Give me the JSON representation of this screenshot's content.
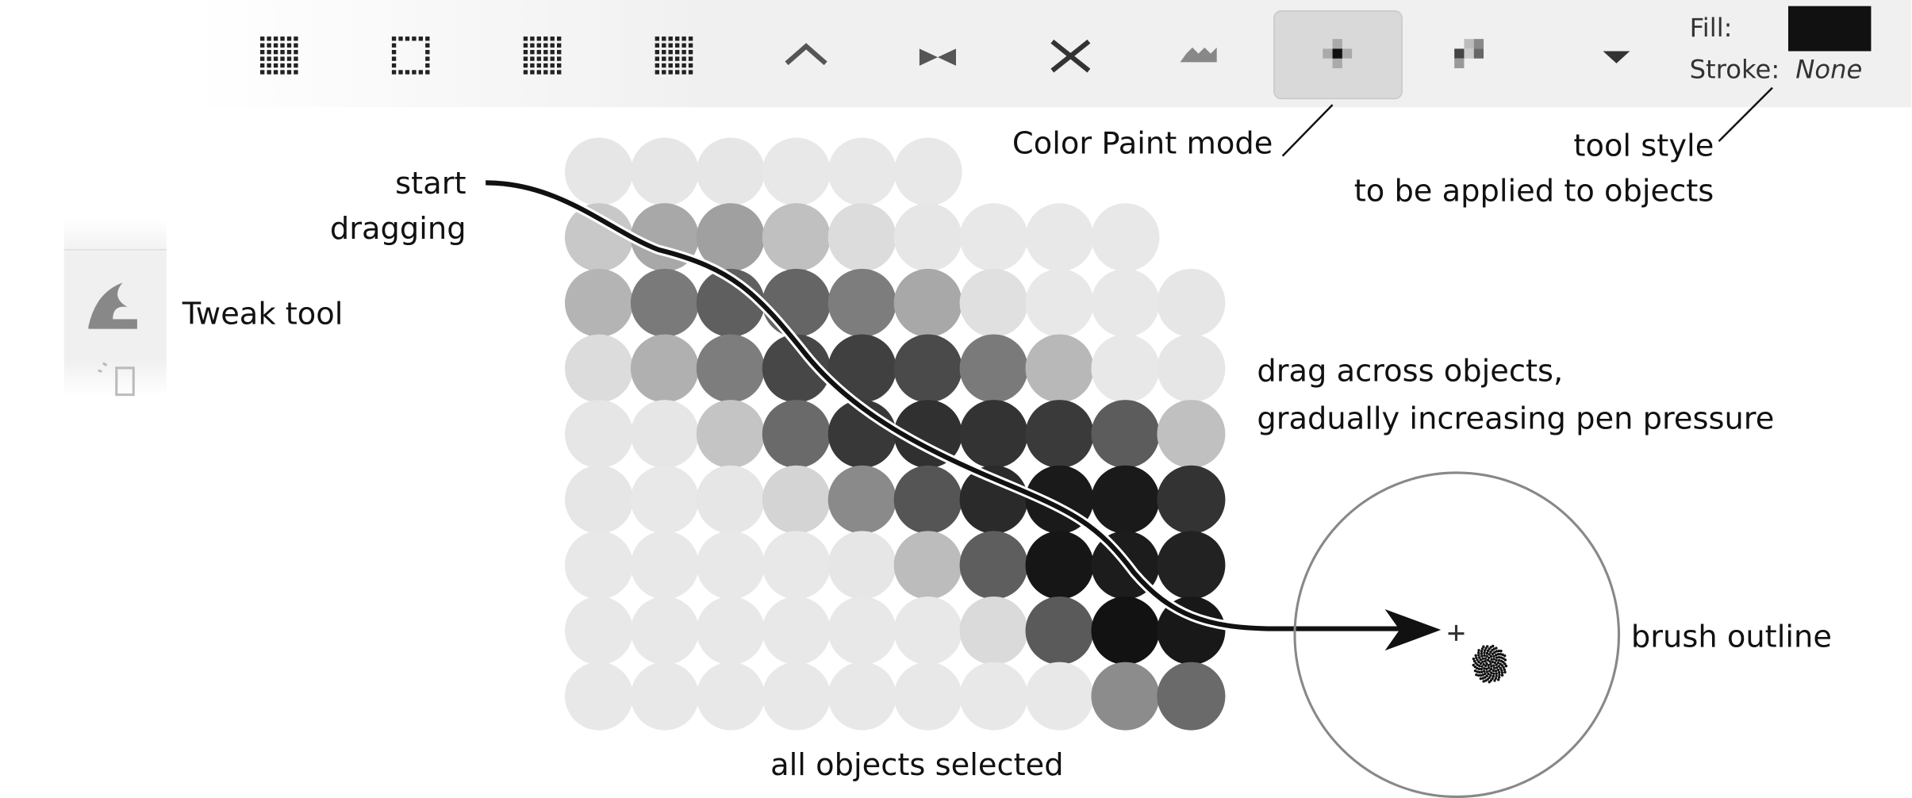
{
  "toolbar": {
    "fill_label": "Fill:",
    "stroke_label": "Stroke:",
    "stroke_value": "None"
  },
  "annotations": {
    "mode": "Color Paint mode",
    "style_line1": "tool style",
    "style_line2": "to be applied to objects",
    "start_line1": "start",
    "start_line2": "dragging",
    "tool": "Tweak tool",
    "drag_line1": "drag across objects,",
    "drag_line2": "gradually increasing pen pressure",
    "brush": "brush outline",
    "selection": "all objects selected"
  }
}
